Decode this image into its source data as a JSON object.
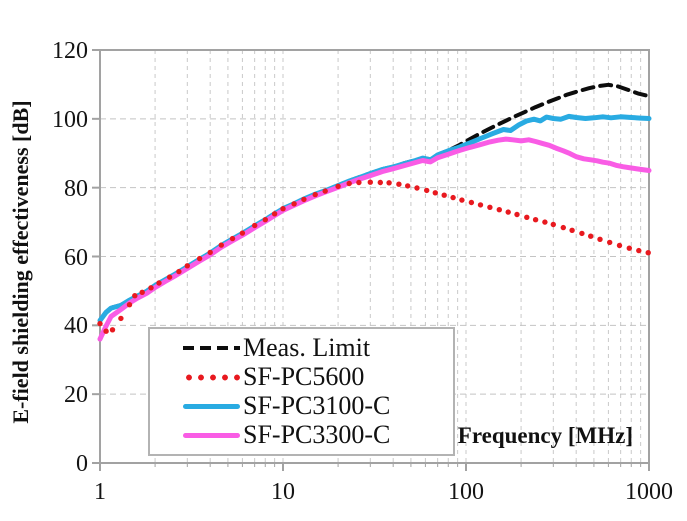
{
  "chart_data": {
    "type": "line",
    "title": "",
    "xlabel": "Frequency [MHz]",
    "ylabel": "E-field shielding effectiveness [dB]",
    "x_scale": "log",
    "xlim": [
      1,
      1000
    ],
    "ylim": [
      0,
      120
    ],
    "x_ticks": [
      1,
      10,
      100,
      1000
    ],
    "x_tick_labels": [
      "1",
      "10",
      "100",
      "1000"
    ],
    "y_ticks": [
      0,
      20,
      40,
      60,
      80,
      100,
      120
    ],
    "y_tick_labels": [
      "0",
      "20",
      "40",
      "60",
      "80",
      "100",
      "120"
    ],
    "grid": true,
    "grid_color": "#c9c9c9",
    "axis_color": "#a2a2a2",
    "legend_position": "inside-bottom-left",
    "series": [
      {
        "name": "Meas. Limit",
        "color": "#0d0d0d",
        "style": "dashed",
        "line_width": 4,
        "points": [
          [
            1,
            41.5
          ],
          [
            1.08,
            43.9
          ],
          [
            1.15,
            45.1
          ],
          [
            1.3,
            45.9
          ],
          [
            1.45,
            47.4
          ],
          [
            1.6,
            48.6
          ],
          [
            1.8,
            50.0
          ],
          [
            2,
            51.7
          ],
          [
            2.3,
            53.5
          ],
          [
            2.6,
            55.1
          ],
          [
            3,
            57.1
          ],
          [
            3.5,
            59.3
          ],
          [
            4,
            61.1
          ],
          [
            4.6,
            63.3
          ],
          [
            5.3,
            65.2
          ],
          [
            6,
            66.8
          ],
          [
            7,
            69.0
          ],
          [
            8,
            70.8
          ],
          [
            9,
            72.5
          ],
          [
            10,
            74.0
          ],
          [
            11.5,
            75.4
          ],
          [
            13,
            76.8
          ],
          [
            15,
            78.2
          ],
          [
            17,
            79.2
          ],
          [
            20,
            80.7
          ],
          [
            23,
            82.0
          ],
          [
            26,
            83.0
          ],
          [
            30,
            84.2
          ],
          [
            35,
            85.4
          ],
          [
            40,
            86.1
          ],
          [
            46,
            87.1
          ],
          [
            53,
            88.0
          ],
          [
            60,
            88.5
          ],
          [
            64,
            88.2
          ],
          [
            70,
            89.6
          ],
          [
            80,
            90.8
          ],
          [
            92,
            92.4
          ],
          [
            105,
            94.1
          ],
          [
            120,
            95.8
          ],
          [
            140,
            97.6
          ],
          [
            160,
            99.1
          ],
          [
            185,
            100.7
          ],
          [
            210,
            102.0
          ],
          [
            240,
            103.4
          ],
          [
            275,
            104.7
          ],
          [
            315,
            105.9
          ],
          [
            360,
            107.1
          ],
          [
            410,
            108.0
          ],
          [
            470,
            108.9
          ],
          [
            530,
            109.5
          ],
          [
            600,
            109.9
          ],
          [
            680,
            109.4
          ],
          [
            780,
            108.3
          ],
          [
            880,
            107.3
          ],
          [
            1000,
            106.6
          ]
        ]
      },
      {
        "name": "SF-PC5600",
        "color": "#e8191f",
        "style": "dotted",
        "dot_radius": 2.7,
        "points": [
          [
            1,
            40.5
          ],
          [
            1.08,
            38.3
          ],
          [
            1.17,
            38.7
          ],
          [
            1.3,
            42.0
          ],
          [
            1.45,
            46.0
          ],
          [
            1.55,
            48.6
          ],
          [
            1.7,
            49.6
          ],
          [
            1.9,
            50.9
          ],
          [
            2.1,
            52.3
          ],
          [
            2.4,
            54.0
          ],
          [
            2.7,
            55.6
          ],
          [
            3,
            57.3
          ],
          [
            3.5,
            59.4
          ],
          [
            4,
            61.2
          ],
          [
            4.6,
            63.3
          ],
          [
            5.3,
            65.2
          ],
          [
            6,
            66.8
          ],
          [
            7,
            69.0
          ],
          [
            8,
            70.7
          ],
          [
            9,
            72.4
          ],
          [
            10,
            73.9
          ],
          [
            11.5,
            75.3
          ],
          [
            13,
            76.6
          ],
          [
            15,
            78.0
          ],
          [
            17,
            79.0
          ],
          [
            20,
            80.4
          ],
          [
            23,
            81.2
          ],
          [
            26,
            81.5
          ],
          [
            30,
            81.6
          ],
          [
            34,
            81.5
          ],
          [
            38,
            81.4
          ],
          [
            43,
            81.0
          ],
          [
            48,
            80.5
          ],
          [
            54,
            79.9
          ],
          [
            61,
            79.2
          ],
          [
            68,
            78.5
          ],
          [
            76,
            77.8
          ],
          [
            85,
            77.1
          ],
          [
            95,
            76.4
          ],
          [
            107,
            75.7
          ],
          [
            120,
            75.0
          ],
          [
            135,
            74.3
          ],
          [
            152,
            73.6
          ],
          [
            170,
            72.9
          ],
          [
            190,
            72.2
          ],
          [
            215,
            71.4
          ],
          [
            240,
            70.7
          ],
          [
            270,
            70.0
          ],
          [
            300,
            69.3
          ],
          [
            340,
            68.4
          ],
          [
            380,
            67.6
          ],
          [
            430,
            66.7
          ],
          [
            480,
            65.9
          ],
          [
            540,
            65.0
          ],
          [
            610,
            64.1
          ],
          [
            690,
            63.2
          ],
          [
            780,
            62.4
          ],
          [
            880,
            61.7
          ],
          [
            990,
            61.1
          ]
        ]
      },
      {
        "name": "SF-PC3100-C",
        "color": "#29abe2",
        "style": "solid",
        "line_width": 5,
        "points": [
          [
            1,
            41.4
          ],
          [
            1.08,
            43.8
          ],
          [
            1.15,
            45.0
          ],
          [
            1.3,
            45.8
          ],
          [
            1.45,
            47.3
          ],
          [
            1.6,
            48.5
          ],
          [
            1.8,
            49.9
          ],
          [
            2,
            51.6
          ],
          [
            2.3,
            53.4
          ],
          [
            2.6,
            55.0
          ],
          [
            3,
            57.0
          ],
          [
            3.5,
            59.2
          ],
          [
            4,
            61.0
          ],
          [
            4.6,
            63.2
          ],
          [
            5.3,
            65.1
          ],
          [
            6,
            66.7
          ],
          [
            7,
            68.9
          ],
          [
            8,
            70.7
          ],
          [
            9,
            72.4
          ],
          [
            10,
            73.9
          ],
          [
            11.5,
            75.3
          ],
          [
            13,
            76.7
          ],
          [
            15,
            78.1
          ],
          [
            17,
            79.1
          ],
          [
            20,
            80.6
          ],
          [
            23,
            81.9
          ],
          [
            26,
            82.9
          ],
          [
            30,
            84.1
          ],
          [
            35,
            85.3
          ],
          [
            40,
            86.0
          ],
          [
            46,
            87.0
          ],
          [
            53,
            87.9
          ],
          [
            58,
            88.6
          ],
          [
            64,
            88.1
          ],
          [
            70,
            89.5
          ],
          [
            80,
            90.7
          ],
          [
            92,
            91.8
          ],
          [
            105,
            93.0
          ],
          [
            120,
            94.3
          ],
          [
            140,
            95.7
          ],
          [
            160,
            96.9
          ],
          [
            175,
            96.6
          ],
          [
            195,
            98.3
          ],
          [
            215,
            99.4
          ],
          [
            235,
            99.9
          ],
          [
            255,
            99.4
          ],
          [
            275,
            100.5
          ],
          [
            300,
            100.1
          ],
          [
            330,
            99.9
          ],
          [
            365,
            100.7
          ],
          [
            400,
            100.4
          ],
          [
            450,
            100.1
          ],
          [
            500,
            100.3
          ],
          [
            560,
            100.6
          ],
          [
            620,
            100.3
          ],
          [
            700,
            100.6
          ],
          [
            800,
            100.4
          ],
          [
            900,
            100.2
          ],
          [
            1000,
            100.1
          ]
        ]
      },
      {
        "name": "SF-PC3300-C",
        "color": "#f95ce5",
        "style": "solid",
        "line_width": 5,
        "points": [
          [
            1,
            36.0
          ],
          [
            1.08,
            39.8
          ],
          [
            1.15,
            42.6
          ],
          [
            1.3,
            44.6
          ],
          [
            1.45,
            46.5
          ],
          [
            1.6,
            47.9
          ],
          [
            1.8,
            49.3
          ],
          [
            2,
            51.0
          ],
          [
            2.3,
            52.9
          ],
          [
            2.6,
            54.5
          ],
          [
            3,
            56.5
          ],
          [
            3.5,
            58.7
          ],
          [
            4,
            60.5
          ],
          [
            4.6,
            62.7
          ],
          [
            5.3,
            64.6
          ],
          [
            6,
            66.2
          ],
          [
            7,
            68.4
          ],
          [
            8,
            70.2
          ],
          [
            9,
            71.9
          ],
          [
            10,
            73.4
          ],
          [
            11.5,
            74.9
          ],
          [
            13,
            76.2
          ],
          [
            15,
            77.6
          ],
          [
            17,
            78.7
          ],
          [
            20,
            80.1
          ],
          [
            23,
            81.4
          ],
          [
            26,
            82.4
          ],
          [
            30,
            83.5
          ],
          [
            35,
            84.7
          ],
          [
            40,
            85.5
          ],
          [
            46,
            86.4
          ],
          [
            53,
            87.3
          ],
          [
            58,
            87.9
          ],
          [
            64,
            87.5
          ],
          [
            70,
            88.7
          ],
          [
            80,
            89.7
          ],
          [
            92,
            90.8
          ],
          [
            105,
            91.7
          ],
          [
            120,
            92.5
          ],
          [
            135,
            93.3
          ],
          [
            150,
            93.8
          ],
          [
            165,
            94.1
          ],
          [
            180,
            93.9
          ],
          [
            200,
            93.6
          ],
          [
            220,
            93.9
          ],
          [
            240,
            93.4
          ],
          [
            260,
            92.9
          ],
          [
            285,
            92.3
          ],
          [
            310,
            91.5
          ],
          [
            340,
            90.7
          ],
          [
            370,
            89.9
          ],
          [
            400,
            89.0
          ],
          [
            440,
            88.4
          ],
          [
            480,
            88.1
          ],
          [
            520,
            87.8
          ],
          [
            560,
            87.4
          ],
          [
            610,
            87.1
          ],
          [
            660,
            86.5
          ],
          [
            720,
            86.1
          ],
          [
            800,
            85.7
          ],
          [
            900,
            85.3
          ],
          [
            1000,
            85.0
          ]
        ]
      }
    ]
  }
}
